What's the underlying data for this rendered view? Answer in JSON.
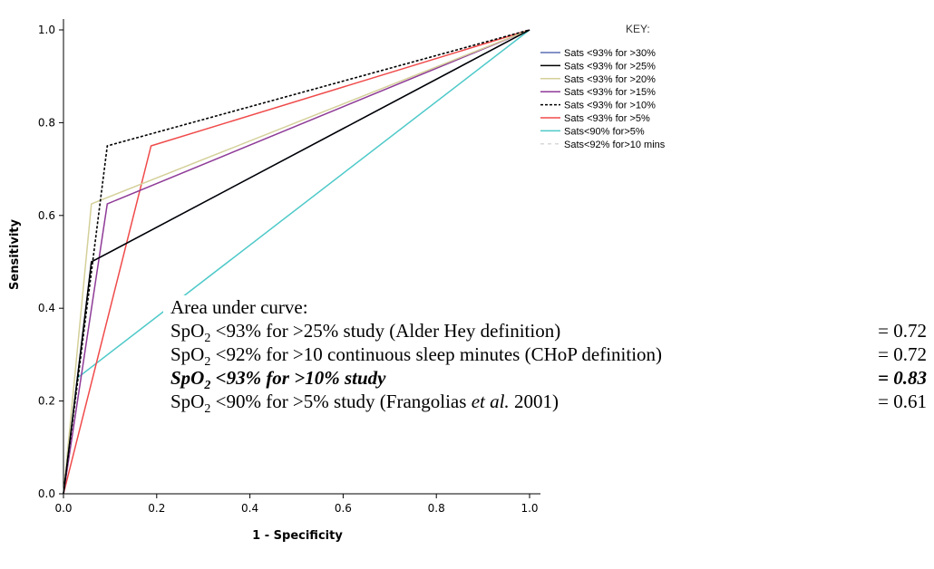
{
  "chart_data": {
    "type": "line",
    "title": "",
    "xlabel": "1 - Specificity",
    "ylabel": "Sensitivity",
    "xlim": [
      0.0,
      1.0
    ],
    "ylim": [
      0.0,
      1.0
    ],
    "x_ticks": [
      "0.0",
      "0.2",
      "0.4",
      "0.6",
      "0.8",
      "1.0"
    ],
    "y_ticks": [
      "0.0",
      "0.2",
      "0.4",
      "0.6",
      "0.8",
      "1.0"
    ],
    "grid": false,
    "legend_title": "KEY:",
    "legend_position": "top-right",
    "series": [
      {
        "name": "Sats <93% for >30%",
        "color": "#5b6fb5",
        "dash": "solid",
        "x": [
          0.0,
          0.06,
          1.0
        ],
        "y": [
          0.0,
          0.5,
          1.0
        ]
      },
      {
        "name": "Sats <93% for >25%",
        "color": "#000000",
        "dash": "solid",
        "x": [
          0.0,
          0.06,
          1.0
        ],
        "y": [
          0.0,
          0.5,
          1.0
        ]
      },
      {
        "name": "Sats <93% for >20%",
        "color": "#d4d09a",
        "dash": "solid",
        "x": [
          0.0,
          0.06,
          1.0
        ],
        "y": [
          0.0,
          0.625,
          1.0
        ]
      },
      {
        "name": "Sats <93% for >15%",
        "color": "#8e3a97",
        "dash": "solid",
        "x": [
          0.0,
          0.094,
          1.0
        ],
        "y": [
          0.0,
          0.625,
          1.0
        ]
      },
      {
        "name": "Sats <93% for >10%",
        "color": "#000000",
        "dash": "dotted",
        "x": [
          0.0,
          0.094,
          1.0
        ],
        "y": [
          0.0,
          0.75,
          1.0
        ]
      },
      {
        "name": "Sats <93% for >5%",
        "color": "#f04a4a",
        "dash": "solid",
        "x": [
          0.0,
          0.188,
          1.0
        ],
        "y": [
          0.0,
          0.75,
          1.0
        ]
      },
      {
        "name": "Sats<90% for>5%",
        "color": "#4fc9c9",
        "dash": "solid",
        "x": [
          0.0,
          0.03,
          1.0
        ],
        "y": [
          0.0,
          0.25,
          1.0
        ]
      },
      {
        "name": "Sats<92% for>10 mins",
        "color": "#d8d8d8",
        "dash": "dashed",
        "x": [
          0.0,
          0.06,
          1.0
        ],
        "y": [
          0.0,
          0.5,
          1.0
        ]
      }
    ]
  },
  "auc_annotation": {
    "heading": "Area under curve:",
    "rows": [
      {
        "prefix": "SpO",
        "sub": "2",
        "text": " <93% for >25% study (Alder Hey definition)",
        "italic_part": "",
        "suffix": "",
        "value": "= 0.72",
        "emphasis": false
      },
      {
        "prefix": "SpO",
        "sub": "2",
        "text": " <92% for >10 continuous sleep minutes (CHoP definition)",
        "italic_part": "",
        "suffix": "",
        "value": "= 0.72",
        "emphasis": false
      },
      {
        "prefix": "SpO",
        "sub": "2",
        "text": " <93% for >10% study",
        "italic_part": "",
        "suffix": "",
        "value": "= 0.83",
        "emphasis": true
      },
      {
        "prefix": "SpO",
        "sub": "2",
        "text": " <90% for >5% study (Frangolias ",
        "italic_part": "et al.",
        "suffix": "  2001)",
        "value": "= 0.61",
        "emphasis": false
      }
    ]
  }
}
